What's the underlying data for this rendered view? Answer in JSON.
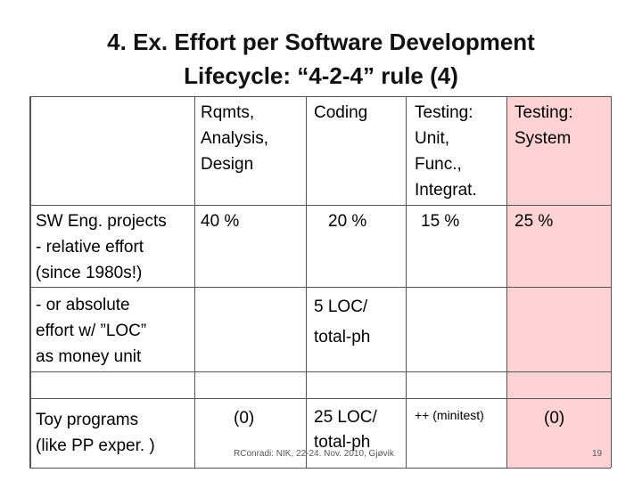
{
  "title": [
    "4. Ex. Effort per Software Development",
    "Lifecycle: “4-2-4” rule (4)"
  ],
  "table": {
    "header": [
      "Rqmts,\nAnalysis,\nDesign",
      "Coding",
      "Testing:\nUnit,\nFunc.,\nIntegrat.",
      "Testing:\nSystem"
    ],
    "rows": [
      {
        "label": "SW Eng. projects\n- relative effort\n(since 1980s!)",
        "cells": [
          "40 %",
          "20 %",
          "15 %",
          "25 %"
        ]
      },
      {
        "label": "- or absolute\neffort w/  ”LOC”\nas money unit",
        "cells": [
          null,
          "5 LOC/\ntotal-ph",
          null,
          null
        ]
      },
      {
        "label": "Toy programs\n(like PP exper. )",
        "cells": [
          "(0)",
          "25 LOC/\ntotal-ph",
          "++ (minitest)",
          "(0)"
        ]
      }
    ]
  },
  "footer": {
    "source": "RConradi: NIK, 22-24. Nov. 2010, Gjøvik",
    "page": "19"
  }
}
